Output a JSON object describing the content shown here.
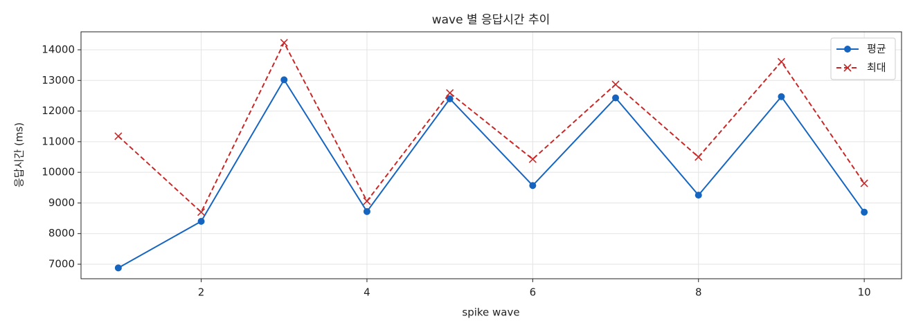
{
  "chart_data": {
    "type": "line",
    "title": "wave 별 응답시간 추이",
    "x_label": "spike wave",
    "y_label": "응답시간 (ms)",
    "x": [
      1,
      2,
      3,
      4,
      5,
      6,
      7,
      8,
      9,
      10
    ],
    "series": [
      {
        "name": "평균",
        "color": "#1565c0",
        "marker": "circle",
        "linestyle": "solid",
        "values": [
          6880,
          8400,
          13020,
          8720,
          12400,
          9570,
          12430,
          9255,
          12470,
          8700
        ]
      },
      {
        "name": "최대",
        "color": "#c62828",
        "marker": "x",
        "linestyle": "dashed",
        "values": [
          11180,
          8700,
          14230,
          9060,
          12590,
          10430,
          12870,
          10500,
          13610,
          9640
        ]
      }
    ],
    "xlim": [
      0.55,
      10.45
    ],
    "xticks": [
      2,
      4,
      6,
      8,
      10
    ],
    "ylim": [
      6526,
      14587
    ],
    "yticks": [
      7000,
      8000,
      9000,
      10000,
      11000,
      12000,
      13000,
      14000
    ],
    "grid": true,
    "legend": "upper right"
  }
}
